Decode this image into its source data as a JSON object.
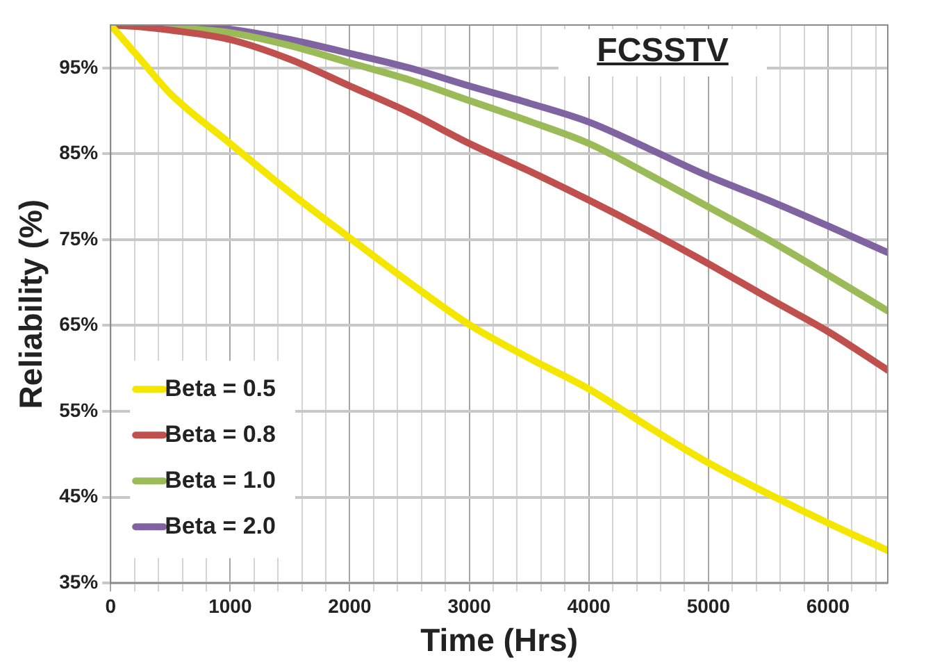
{
  "chart_data": {
    "type": "line",
    "title": "FCSSTV",
    "xlabel": "Time (Hrs)",
    "ylabel": "Reliability (%)",
    "x": [
      0,
      250,
      500,
      1000,
      1500,
      2000,
      2500,
      3000,
      3500,
      4000,
      4500,
      5000,
      5500,
      6000,
      6500
    ],
    "series": [
      {
        "name": "Beta = 0.5",
        "color": "#f5e600",
        "values": [
          100,
          96,
          92,
          86.2,
          80.5,
          75.2,
          70,
          65.1,
          61.2,
          57.6,
          53.2,
          49,
          45.4,
          42,
          38.8
        ]
      },
      {
        "name": "Beta = 0.8",
        "color": "#c0504d",
        "values": [
          100,
          99.8,
          99.4,
          98.3,
          96,
          92.9,
          89.8,
          86.2,
          83,
          79.6,
          76,
          72.2,
          68.2,
          64.3,
          59.8
        ]
      },
      {
        "name": "Beta = 1.0",
        "color": "#9bbb59",
        "values": [
          100,
          99.9,
          99.7,
          99.1,
          97.6,
          95.6,
          93.6,
          91.2,
          88.8,
          86.2,
          82.6,
          78.8,
          75,
          70.9,
          66.7
        ]
      },
      {
        "name": "Beta = 2.0",
        "color": "#8064a2",
        "values": [
          100,
          100,
          99.9,
          99.5,
          98.3,
          96.7,
          95,
          92.9,
          90.9,
          88.7,
          85.6,
          82.4,
          79.6,
          76.6,
          73.5
        ]
      }
    ],
    "xlim": [
      0,
      6500
    ],
    "xticks": [
      0,
      {
        "value": 200,
        "label": null
      },
      {
        "value": 400,
        "label": null
      },
      {
        "value": 600,
        "label": null
      },
      {
        "value": 800,
        "label": null
      },
      1000,
      {
        "value": 1200,
        "label": null
      },
      {
        "value": 1400,
        "label": null
      },
      {
        "value": 1600,
        "label": null
      },
      {
        "value": 1800,
        "label": null
      },
      2000,
      {
        "value": 2200,
        "label": null
      },
      {
        "value": 2400,
        "label": null
      },
      {
        "value": 2600,
        "label": null
      },
      {
        "value": 2800,
        "label": null
      },
      3000,
      {
        "value": 3200,
        "label": null
      },
      {
        "value": 3400,
        "label": null
      },
      {
        "value": 3600,
        "label": null
      },
      {
        "value": 3800,
        "label": null
      },
      4000,
      {
        "value": 4200,
        "label": null
      },
      {
        "value": 4400,
        "label": null
      },
      {
        "value": 4600,
        "label": null
      },
      {
        "value": 4800,
        "label": null
      },
      5000,
      {
        "value": 5200,
        "label": null
      },
      {
        "value": 5400,
        "label": null
      },
      {
        "value": 5600,
        "label": null
      },
      {
        "value": 5800,
        "label": null
      },
      6000,
      {
        "value": 6200,
        "label": null
      },
      {
        "value": 6400,
        "label": null
      }
    ],
    "ylim": [
      35,
      100
    ],
    "yticks": [
      {
        "value": 35,
        "label": "35%"
      },
      {
        "value": 45,
        "label": "45%"
      },
      {
        "value": 55,
        "label": "55%"
      },
      {
        "value": 65,
        "label": "65%"
      },
      {
        "value": 75,
        "label": "75%"
      },
      {
        "value": 85,
        "label": "85%"
      },
      {
        "value": 95,
        "label": "95%"
      }
    ],
    "grid": true,
    "legend": "bottom left",
    "marker": "none",
    "line_style": "solid"
  }
}
